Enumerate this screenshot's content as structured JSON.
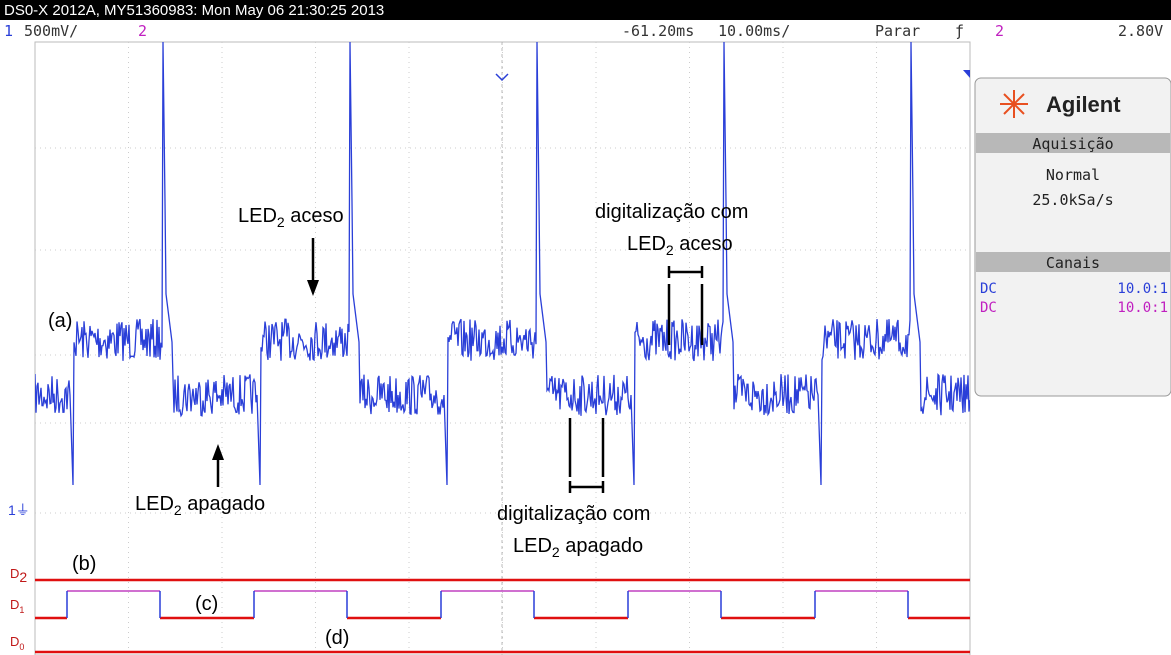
{
  "title_bar": "DS0-X 2012A, MY51360983: Mon May 06 21:30:25 2013",
  "status": {
    "ch1": "1",
    "ch1_scale": "500mV/",
    "ch2": "2",
    "delay": "-61.20ms",
    "timebase": "10.00ms/",
    "run_state": "Parar",
    "trigger_source": "2",
    "trigger_level": "2.80V"
  },
  "panel": {
    "brand": "Agilent",
    "acquisition_title": "Aquisição",
    "acquisition_mode": "Normal",
    "sample_rate": "25.0kSa/s",
    "channels_title": "Canais",
    "channels": [
      {
        "coupling": "DC",
        "probe": "10.0:1"
      },
      {
        "coupling": "DC",
        "probe": "10.0:1"
      }
    ]
  },
  "digital_labels": [
    {
      "letter": "D",
      "index": "2"
    },
    {
      "letter": "D",
      "index": "1"
    },
    {
      "letter": "D",
      "index": "0"
    }
  ],
  "annotations": {
    "a": "(a)",
    "b": "(b)",
    "c": "(c)",
    "d": "(d)",
    "led_on": {
      "main": "LED",
      "sub": "2",
      "rest": " aceso"
    },
    "led_off": {
      "main": "LED",
      "sub": "2",
      "rest": " apagado"
    },
    "scan_on": {
      "line1": "digitalização com",
      "main": "LED",
      "sub": "2",
      "rest": " aceso"
    },
    "scan_off": {
      "line1": "digitalização com",
      "main": "LED",
      "sub": "2",
      "rest": " apagado"
    }
  }
}
